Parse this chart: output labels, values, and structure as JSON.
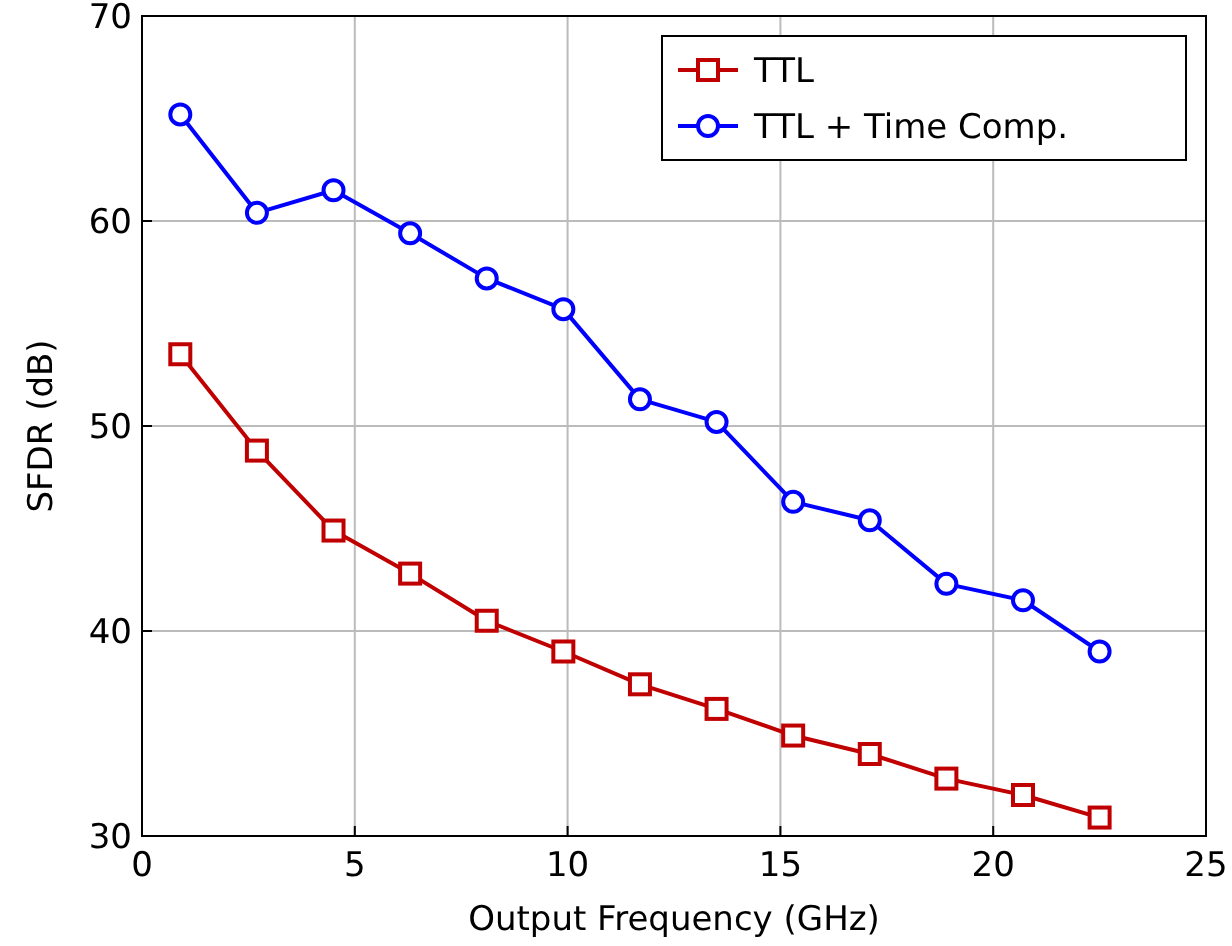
{
  "chart_data": {
    "type": "line",
    "xlabel": "Output Frequency (GHz)",
    "ylabel": "SFDR (dB)",
    "xlim": [
      0,
      25
    ],
    "ylim": [
      30,
      70
    ],
    "xticks": [
      0,
      5,
      10,
      15,
      20,
      25
    ],
    "yticks": [
      30,
      40,
      50,
      60,
      70
    ],
    "grid": true,
    "legend": "top right",
    "line_style": "solid",
    "x": [
      0.9,
      2.7,
      4.5,
      6.3,
      8.1,
      9.9,
      11.7,
      13.5,
      15.3,
      17.1,
      18.9,
      20.7,
      22.5
    ],
    "series": [
      {
        "name": "TTL",
        "color": "#c00000",
        "marker": "square",
        "values": [
          53.5,
          48.8,
          44.9,
          42.8,
          40.5,
          39.0,
          37.4,
          36.2,
          34.9,
          34.0,
          32.8,
          32.0,
          30.9
        ]
      },
      {
        "name": "TTL + Time Comp.",
        "color": "#0000ff",
        "marker": "circle",
        "values": [
          65.2,
          60.4,
          61.5,
          59.4,
          57.2,
          55.7,
          51.3,
          50.2,
          46.3,
          45.4,
          42.3,
          41.5,
          39.0
        ]
      }
    ]
  }
}
